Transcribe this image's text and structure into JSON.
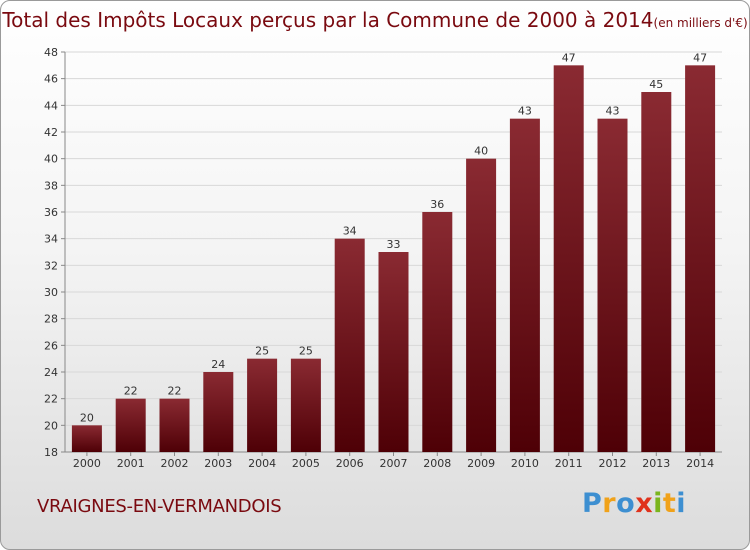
{
  "title": "Total des Impôts Locaux perçus par la Commune de 2000 à 2014",
  "title_unit": "(en milliers d'€)",
  "commune": "VRAIGNES-EN-VERMANDOIS",
  "logo": {
    "text": "Proxiti",
    "letters": [
      {
        "ch": "P",
        "color": "#3d8fd1"
      },
      {
        "ch": "r",
        "color": "#f0a21a"
      },
      {
        "ch": "o",
        "color": "#3d8fd1"
      },
      {
        "ch": "x",
        "color": "#e0321c"
      },
      {
        "ch": "i",
        "color": "#7ab51d"
      },
      {
        "ch": "t",
        "color": "#f0a21a"
      },
      {
        "ch": "i",
        "color": "#3d8fd1"
      }
    ]
  },
  "colors": {
    "bar_light": "#8a2a32",
    "bar_dark": "#4e0006",
    "title": "#7a0a10"
  },
  "chart_data": {
    "type": "bar",
    "title": "Total des Impôts Locaux perçus par la Commune de 2000 à 2014",
    "ylabel": "en milliers d'€",
    "xlabel": "",
    "categories": [
      "2000",
      "2001",
      "2002",
      "2003",
      "2004",
      "2005",
      "2006",
      "2007",
      "2008",
      "2009",
      "2010",
      "2011",
      "2012",
      "2013",
      "2014"
    ],
    "values": [
      20,
      22,
      22,
      24,
      25,
      25,
      34,
      33,
      36,
      40,
      43,
      47,
      43,
      45,
      47
    ],
    "ylim": [
      18,
      48
    ],
    "yticks": [
      18,
      20,
      22,
      24,
      26,
      28,
      30,
      32,
      34,
      36,
      38,
      40,
      42,
      44,
      46,
      48
    ],
    "grid": true
  }
}
